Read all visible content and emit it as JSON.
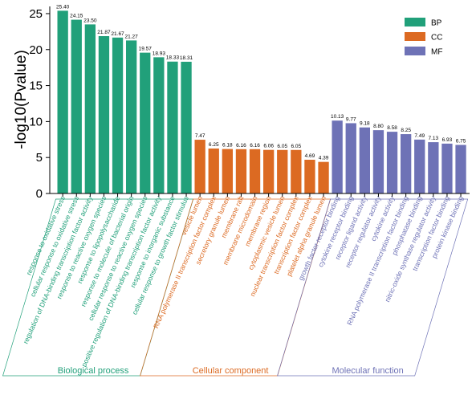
{
  "chart_data": {
    "type": "bar",
    "ylabel": "-log10(Pvalue)",
    "ylim": [
      0,
      26
    ],
    "yticks": [
      0,
      5,
      10,
      15,
      20,
      25
    ],
    "grid": false,
    "legend_position": "top-right",
    "series": [
      {
        "name": "BP",
        "color": "#21a07a",
        "group_label": "Biological process",
        "categories": [
          "response to oxidative stress",
          "cellular response to oxidative stress",
          "regulation of DNA-binding transcription factor activity",
          "response to reactive oxygen species",
          "response to lipopolysaccharide",
          "response to molecule of bacterial origin",
          "cellular response to reactive oxygen species",
          "positive regulation of DNA-binding transcription factor activity",
          "response to inorganic substance",
          "cellular response to growth factor stimulus"
        ],
        "values": [
          25.4,
          24.15,
          23.5,
          21.87,
          21.67,
          21.27,
          19.57,
          18.93,
          18.33,
          18.31
        ],
        "value_labels": [
          "25.40",
          "24.15",
          "23.50",
          "21.87",
          "21.67",
          "21.27",
          "19.57",
          "18.93",
          "18.33",
          "18.31"
        ]
      },
      {
        "name": "CC",
        "color": "#dc6a22",
        "group_label": "Cellular component",
        "categories": [
          "vesicle lumen",
          "RNA polymerase II transcription factor complex",
          "secretory granule lumen",
          "membrane raft",
          "membrane microdomain",
          "membrane region",
          "cytoplasmic vesicle lumen",
          "nuclear transcription factor complex",
          "transcription factor complex",
          "platelet alpha granule lumen"
        ],
        "values": [
          7.47,
          6.25,
          6.18,
          6.16,
          6.16,
          6.06,
          6.05,
          6.05,
          4.69,
          4.39
        ],
        "value_labels": [
          "7.47",
          "6.25",
          "6.18",
          "6.16",
          "6.16",
          "6.06",
          "6.05",
          "6.05",
          "4.69",
          "4.39"
        ]
      },
      {
        "name": "MF",
        "color": "#6e72b6",
        "group_label": "Molecular function",
        "categories": [
          "growth factor receptor binding",
          "cytokine receptor binding",
          "receptor ligand activity",
          "receptor regulator activity",
          "cytokine activity",
          "RNA polymerase II transcription factor binding",
          "phosphatase binding",
          "nitric-oxide synthase regulator activity",
          "transcription factor binding",
          "protein kinase binding"
        ],
        "values": [
          10.13,
          9.77,
          9.18,
          8.8,
          8.58,
          8.25,
          7.49,
          7.13,
          6.93,
          6.75
        ],
        "value_labels": [
          "10.13",
          "9.77",
          "9.18",
          "8.80",
          "8.58",
          "8.25",
          "7.49",
          "7.13",
          "6.93",
          "6.75"
        ]
      }
    ]
  }
}
